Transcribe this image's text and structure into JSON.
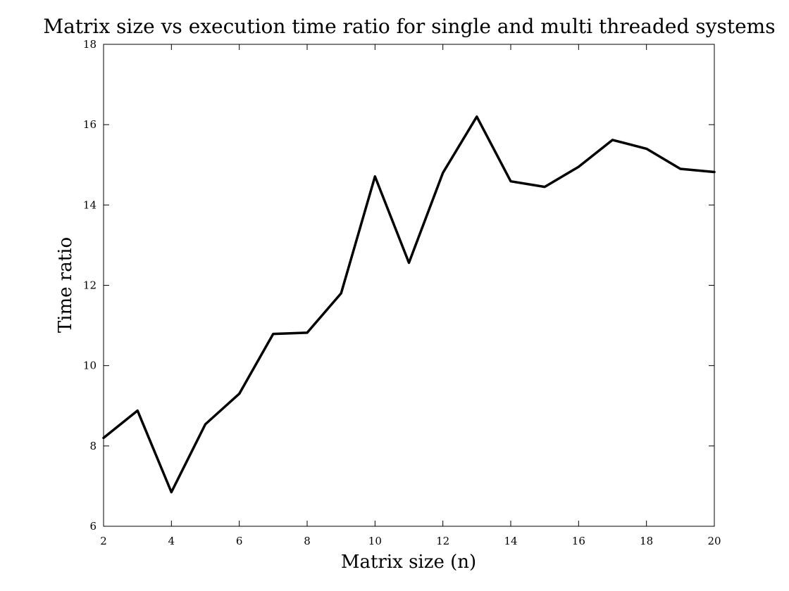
{
  "chart_data": {
    "type": "line",
    "title": "Matrix size vs execution time ratio for single and multi threaded systems",
    "xlabel": "Matrix size (n)",
    "ylabel": "Time ratio",
    "xlim": [
      2,
      20
    ],
    "ylim": [
      6,
      18
    ],
    "xticks": [
      2,
      4,
      6,
      8,
      10,
      12,
      14,
      16,
      18,
      20
    ],
    "yticks": [
      6,
      8,
      10,
      12,
      14,
      16,
      18
    ],
    "grid": false,
    "legend": "none",
    "series": [
      {
        "color": "#000000",
        "x": [
          2,
          3,
          4,
          5,
          6,
          7,
          8,
          9,
          10,
          11,
          12,
          13,
          14,
          15,
          16,
          17,
          18,
          19,
          20
        ],
        "y": [
          8.2,
          8.88,
          6.85,
          8.54,
          9.3,
          10.79,
          10.82,
          11.8,
          14.71,
          12.56,
          14.8,
          16.2,
          14.59,
          14.45,
          14.95,
          15.62,
          15.4,
          14.9,
          14.82
        ]
      }
    ]
  }
}
